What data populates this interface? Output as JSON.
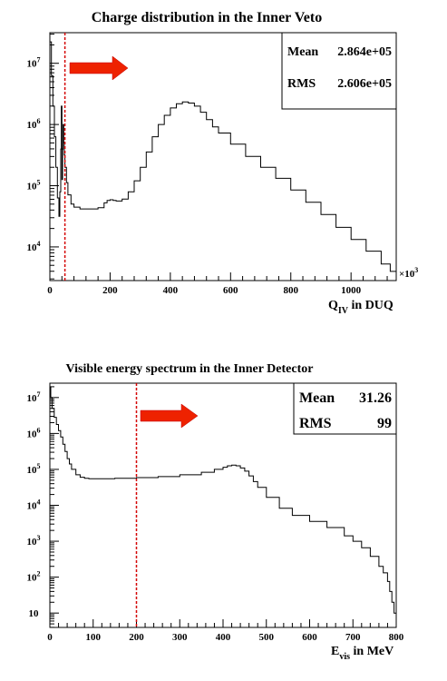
{
  "chart_data": [
    {
      "type": "line",
      "title": "Charge distribution in the Inner Veto",
      "xlabel": {
        "main": "Q",
        "sub": "IV",
        "rest": " in DUQ"
      },
      "x_exponent_label": "×10",
      "x_exponent_power": "3",
      "xlim": [
        0,
        1150
      ],
      "ylim_log10": [
        3.45,
        7.5
      ],
      "y_log_scale": true,
      "x_ticks": [
        0,
        200,
        400,
        600,
        800,
        1000
      ],
      "y_ticks": [
        {
          "label": "10",
          "exp": "4",
          "log": 4
        },
        {
          "label": "10",
          "exp": "5",
          "log": 5
        },
        {
          "label": "10",
          "exp": "6",
          "log": 6
        },
        {
          "label": "10",
          "exp": "7",
          "log": 7
        }
      ],
      "stats": [
        {
          "name": "Mean",
          "value": "2.864e+05"
        },
        {
          "name": "RMS",
          "value": "2.606e+05"
        }
      ],
      "cut_line_x": 50,
      "series": [
        {
          "x": [
            0,
            5,
            10,
            15,
            20,
            25,
            30,
            33,
            36,
            38,
            40,
            42,
            44,
            46,
            48,
            50,
            55,
            60,
            70,
            80,
            100,
            130,
            160,
            180,
            190,
            200,
            210,
            220,
            240,
            260,
            280,
            300,
            320,
            340,
            360,
            380,
            400,
            420,
            440,
            460,
            480,
            500,
            520,
            540,
            560,
            600,
            650,
            700,
            750,
            800,
            850,
            900,
            950,
            1000,
            1050,
            1100,
            1130,
            1150
          ],
          "y": [
            7.35,
            6.8,
            6.3,
            5.8,
            5.3,
            4.8,
            4.5,
            4.9,
            5.6,
            6.3,
            5.1,
            5.6,
            6.0,
            5.7,
            5.5,
            5.3,
            5.05,
            4.85,
            4.7,
            4.65,
            4.62,
            4.62,
            4.64,
            4.72,
            4.76,
            4.77,
            4.76,
            4.75,
            4.78,
            4.9,
            5.08,
            5.3,
            5.55,
            5.8,
            6.0,
            6.15,
            6.27,
            6.34,
            6.37,
            6.35,
            6.3,
            6.2,
            6.08,
            5.96,
            5.86,
            5.68,
            5.48,
            5.3,
            5.12,
            4.93,
            4.73,
            4.53,
            4.32,
            4.12,
            3.93,
            3.72,
            3.6,
            3.5
          ]
        }
      ]
    },
    {
      "type": "line",
      "title": "Visible energy spectrum in the Inner Detector",
      "xlabel": {
        "main": "E",
        "sub": "vis",
        "rest": " in MeV"
      },
      "xlim": [
        0,
        800
      ],
      "ylim_log10": [
        0.6,
        7.4
      ],
      "y_log_scale": true,
      "x_ticks": [
        0,
        100,
        200,
        300,
        400,
        500,
        600,
        700,
        800
      ],
      "y_ticks": [
        {
          "label": "10",
          "exp": "",
          "log": 1
        },
        {
          "label": "10",
          "exp": "2",
          "log": 2
        },
        {
          "label": "10",
          "exp": "3",
          "log": 3
        },
        {
          "label": "10",
          "exp": "4",
          "log": 4
        },
        {
          "label": "10",
          "exp": "5",
          "log": 5
        },
        {
          "label": "10",
          "exp": "6",
          "log": 6
        },
        {
          "label": "10",
          "exp": "7",
          "log": 7
        }
      ],
      "stats": [
        {
          "name": "Mean",
          "value": "31.26"
        },
        {
          "name": "RMS",
          "value": "99"
        }
      ],
      "cut_line_x": 200,
      "series": [
        {
          "x": [
            0,
            2,
            5,
            10,
            15,
            20,
            25,
            30,
            35,
            40,
            45,
            50,
            60,
            70,
            80,
            90,
            100,
            150,
            200,
            250,
            300,
            350,
            380,
            400,
            410,
            420,
            430,
            440,
            450,
            460,
            470,
            480,
            500,
            530,
            560,
            600,
            640,
            680,
            700,
            720,
            740,
            760,
            770,
            780,
            785,
            790,
            795,
            800
          ],
          "y": [
            7.3,
            7.0,
            6.7,
            6.45,
            6.25,
            6.08,
            5.9,
            5.7,
            5.5,
            5.3,
            5.15,
            5.0,
            4.85,
            4.78,
            4.75,
            4.74,
            4.74,
            4.75,
            4.77,
            4.8,
            4.85,
            4.92,
            5.0,
            5.06,
            5.1,
            5.12,
            5.1,
            5.04,
            4.95,
            4.82,
            4.66,
            4.5,
            4.22,
            3.92,
            3.72,
            3.55,
            3.38,
            3.15,
            3.0,
            2.82,
            2.58,
            2.3,
            2.12,
            1.88,
            1.6,
            1.3,
            1.0,
            0.8
          ]
        }
      ]
    }
  ]
}
